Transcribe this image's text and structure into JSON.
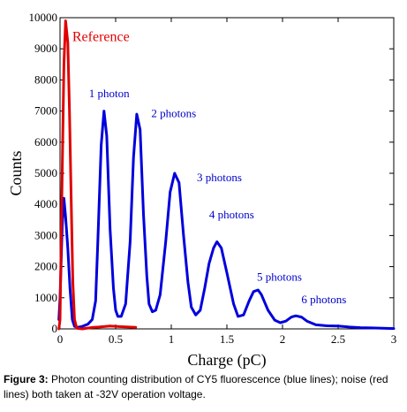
{
  "chart_data": {
    "type": "line",
    "xlabel": "Charge (pC)",
    "ylabel": "Counts",
    "xlim": [
      0,
      3
    ],
    "ylim": [
      0,
      10000
    ],
    "x_ticks": [
      "0",
      "0.5",
      "1",
      "1.5",
      "2",
      "2.5",
      "3"
    ],
    "x_tick_values": [
      0,
      0.5,
      1,
      1.5,
      2,
      2.5,
      3
    ],
    "y_ticks": [
      "0",
      "1000",
      "2000",
      "3000",
      "4000",
      "5000",
      "6000",
      "7000",
      "8000",
      "9000",
      "10000"
    ],
    "y_tick_values": [
      0,
      1000,
      2000,
      3000,
      4000,
      5000,
      6000,
      7000,
      8000,
      9000,
      10000
    ],
    "series": [
      {
        "name": "CY5 fluorescence",
        "color": "#0000dd",
        "points": [
          [
            -0.01,
            300
          ],
          [
            0.0,
            1000
          ],
          [
            0.02,
            3300
          ],
          [
            0.035,
            4200
          ],
          [
            0.05,
            3600
          ],
          [
            0.07,
            2600
          ],
          [
            0.09,
            1300
          ],
          [
            0.11,
            300
          ],
          [
            0.13,
            80
          ],
          [
            0.16,
            50
          ],
          [
            0.2,
            80
          ],
          [
            0.25,
            150
          ],
          [
            0.29,
            300
          ],
          [
            0.32,
            900
          ],
          [
            0.34,
            2800
          ],
          [
            0.37,
            5900
          ],
          [
            0.395,
            7000
          ],
          [
            0.42,
            6200
          ],
          [
            0.45,
            3200
          ],
          [
            0.48,
            1300
          ],
          [
            0.5,
            600
          ],
          [
            0.52,
            400
          ],
          [
            0.55,
            400
          ],
          [
            0.59,
            800
          ],
          [
            0.63,
            2800
          ],
          [
            0.66,
            5500
          ],
          [
            0.69,
            6900
          ],
          [
            0.72,
            6400
          ],
          [
            0.75,
            3700
          ],
          [
            0.78,
            1700
          ],
          [
            0.8,
            800
          ],
          [
            0.83,
            550
          ],
          [
            0.86,
            600
          ],
          [
            0.9,
            1100
          ],
          [
            0.95,
            2800
          ],
          [
            0.99,
            4400
          ],
          [
            1.03,
            5000
          ],
          [
            1.07,
            4700
          ],
          [
            1.11,
            3000
          ],
          [
            1.15,
            1500
          ],
          [
            1.18,
            700
          ],
          [
            1.22,
            450
          ],
          [
            1.26,
            600
          ],
          [
            1.3,
            1300
          ],
          [
            1.34,
            2100
          ],
          [
            1.38,
            2600
          ],
          [
            1.41,
            2800
          ],
          [
            1.45,
            2600
          ],
          [
            1.5,
            1800
          ],
          [
            1.56,
            800
          ],
          [
            1.6,
            400
          ],
          [
            1.65,
            450
          ],
          [
            1.7,
            900
          ],
          [
            1.74,
            1200
          ],
          [
            1.78,
            1250
          ],
          [
            1.81,
            1100
          ],
          [
            1.87,
            600
          ],
          [
            1.93,
            280
          ],
          [
            1.98,
            200
          ],
          [
            2.03,
            250
          ],
          [
            2.08,
            380
          ],
          [
            2.12,
            420
          ],
          [
            2.17,
            380
          ],
          [
            2.22,
            250
          ],
          [
            2.3,
            130
          ],
          [
            2.4,
            100
          ],
          [
            2.5,
            90
          ],
          [
            2.6,
            60
          ],
          [
            2.7,
            40
          ],
          [
            2.8,
            30
          ],
          [
            2.9,
            20
          ],
          [
            3.0,
            10
          ]
        ]
      },
      {
        "name": "Reference",
        "color": "#e00000",
        "points": [
          [
            -0.01,
            0
          ],
          [
            0.0,
            300
          ],
          [
            0.015,
            4000
          ],
          [
            0.035,
            8500
          ],
          [
            0.05,
            9900
          ],
          [
            0.07,
            9200
          ],
          [
            0.085,
            7000
          ],
          [
            0.1,
            4200
          ],
          [
            0.115,
            1500
          ],
          [
            0.13,
            300
          ],
          [
            0.15,
            20
          ],
          [
            0.2,
            0
          ],
          [
            0.3,
            50
          ],
          [
            0.35,
            60
          ],
          [
            0.45,
            90
          ],
          [
            0.55,
            70
          ],
          [
            0.68,
            50
          ]
        ]
      }
    ],
    "annotations": [
      {
        "text": "Reference",
        "x": 0.11,
        "y": 9250
      },
      {
        "text": "1 photon",
        "x": 0.26,
        "y": 7450
      },
      {
        "text": "2 photons",
        "x": 0.82,
        "y": 6800
      },
      {
        "text": "3 photons",
        "x": 1.23,
        "y": 4750
      },
      {
        "text": "4 photons",
        "x": 1.34,
        "y": 3550
      },
      {
        "text": "5 photons",
        "x": 1.77,
        "y": 1550
      },
      {
        "text": "6 photons",
        "x": 2.17,
        "y": 830
      }
    ]
  },
  "caption": {
    "figure_label": "Figure 3:",
    "text": " Photon counting distribution of CY5 fluorescence (blue lines); noise (red lines) both taken at -32V operation voltage."
  }
}
